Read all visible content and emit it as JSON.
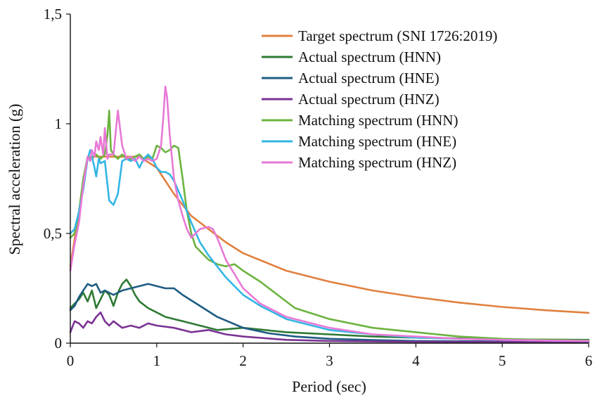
{
  "chart_data": {
    "type": "line",
    "xlabel": "Period (sec)",
    "ylabel": "Spectral acceleration (g)",
    "xlim": [
      0,
      6
    ],
    "ylim": [
      0,
      1.5
    ],
    "xticks": [
      0,
      1,
      2,
      3,
      4,
      5,
      6
    ],
    "xtick_labels": [
      "0",
      "1",
      "2",
      "3",
      "4",
      "5",
      "6"
    ],
    "yticks": [
      0,
      0.5,
      1,
      1.5
    ],
    "ytick_labels": [
      "0",
      "0,5",
      "1",
      "1,5"
    ],
    "grid": false,
    "legend_position": "top-right",
    "series": [
      {
        "name": "Target spectrum (SNI 1726:2019)",
        "color": "#E0803F",
        "x": [
          0,
          0.1,
          0.2,
          0.5,
          0.8,
          1.0,
          1.2,
          1.4,
          1.6,
          1.8,
          2.0,
          2.5,
          3.0,
          3.5,
          4.0,
          4.5,
          5.0,
          5.5,
          6.0
        ],
        "y": [
          0.35,
          0.6,
          0.85,
          0.85,
          0.85,
          0.8,
          0.68,
          0.58,
          0.52,
          0.46,
          0.41,
          0.33,
          0.28,
          0.24,
          0.21,
          0.185,
          0.165,
          0.15,
          0.138
        ]
      },
      {
        "name": "Actual spectrum (HNN)",
        "color": "#2E7A33",
        "x": [
          0,
          0.05,
          0.1,
          0.15,
          0.2,
          0.25,
          0.3,
          0.35,
          0.4,
          0.45,
          0.5,
          0.55,
          0.6,
          0.65,
          0.7,
          0.75,
          0.8,
          0.9,
          1.0,
          1.1,
          1.2,
          1.3,
          1.5,
          1.7,
          2.0,
          2.5,
          3.0,
          3.5,
          4.0,
          5.0,
          6.0
        ],
        "y": [
          0.16,
          0.18,
          0.2,
          0.23,
          0.19,
          0.24,
          0.16,
          0.2,
          0.24,
          0.22,
          0.17,
          0.23,
          0.27,
          0.29,
          0.26,
          0.22,
          0.19,
          0.16,
          0.14,
          0.12,
          0.11,
          0.1,
          0.08,
          0.06,
          0.07,
          0.05,
          0.04,
          0.03,
          0.025,
          0.018,
          0.015
        ]
      },
      {
        "name": "Actual spectrum (HNE)",
        "color": "#1E5C82",
        "x": [
          0,
          0.05,
          0.1,
          0.15,
          0.2,
          0.25,
          0.3,
          0.35,
          0.4,
          0.5,
          0.6,
          0.7,
          0.8,
          0.9,
          1.0,
          1.1,
          1.2,
          1.3,
          1.5,
          1.7,
          2.0,
          2.3,
          2.6,
          3.0,
          3.5,
          4.0,
          5.0,
          6.0
        ],
        "y": [
          0.15,
          0.17,
          0.21,
          0.24,
          0.27,
          0.26,
          0.27,
          0.23,
          0.24,
          0.22,
          0.24,
          0.25,
          0.26,
          0.27,
          0.26,
          0.25,
          0.25,
          0.22,
          0.17,
          0.12,
          0.07,
          0.045,
          0.03,
          0.02,
          0.014,
          0.01,
          0.008,
          0.007
        ]
      },
      {
        "name": "Actual spectrum (HNZ)",
        "color": "#7B3294",
        "x": [
          0,
          0.05,
          0.1,
          0.15,
          0.2,
          0.25,
          0.3,
          0.35,
          0.4,
          0.45,
          0.5,
          0.6,
          0.7,
          0.8,
          0.9,
          1.0,
          1.2,
          1.4,
          1.6,
          1.8,
          2.0,
          2.5,
          3.0,
          4.0,
          5.0,
          6.0
        ],
        "y": [
          0.05,
          0.1,
          0.09,
          0.07,
          0.1,
          0.09,
          0.12,
          0.14,
          0.1,
          0.08,
          0.1,
          0.07,
          0.08,
          0.07,
          0.09,
          0.08,
          0.07,
          0.05,
          0.06,
          0.04,
          0.03,
          0.015,
          0.01,
          0.006,
          0.005,
          0.005
        ]
      },
      {
        "name": "Matching spectrum (HNN)",
        "color": "#6CB33F",
        "x": [
          0,
          0.05,
          0.1,
          0.15,
          0.2,
          0.25,
          0.3,
          0.35,
          0.4,
          0.43,
          0.45,
          0.47,
          0.5,
          0.55,
          0.6,
          0.65,
          0.7,
          0.75,
          0.8,
          0.85,
          0.9,
          0.95,
          1.0,
          1.05,
          1.1,
          1.15,
          1.2,
          1.25,
          1.3,
          1.35,
          1.4,
          1.45,
          1.5,
          1.6,
          1.7,
          1.8,
          1.9,
          2.0,
          2.2,
          2.4,
          2.6,
          3.0,
          3.5,
          4.0,
          4.5,
          5.0,
          5.5,
          6.0
        ],
        "y": [
          0.48,
          0.5,
          0.6,
          0.75,
          0.85,
          0.84,
          0.86,
          0.84,
          0.86,
          0.95,
          1.06,
          0.88,
          0.86,
          0.84,
          0.86,
          0.84,
          0.84,
          0.85,
          0.86,
          0.84,
          0.85,
          0.84,
          0.9,
          0.89,
          0.87,
          0.88,
          0.9,
          0.89,
          0.75,
          0.6,
          0.5,
          0.44,
          0.42,
          0.38,
          0.36,
          0.35,
          0.36,
          0.33,
          0.28,
          0.22,
          0.16,
          0.11,
          0.07,
          0.05,
          0.03,
          0.02,
          0.015,
          0.012
        ]
      },
      {
        "name": "Matching spectrum (HNE)",
        "color": "#33B5E5",
        "x": [
          0,
          0.05,
          0.1,
          0.15,
          0.2,
          0.23,
          0.25,
          0.28,
          0.3,
          0.33,
          0.35,
          0.4,
          0.45,
          0.5,
          0.55,
          0.6,
          0.65,
          0.7,
          0.75,
          0.8,
          0.85,
          0.9,
          0.95,
          1.0,
          1.05,
          1.1,
          1.15,
          1.2,
          1.3,
          1.4,
          1.5,
          1.6,
          1.7,
          1.8,
          2.0,
          2.2,
          2.5,
          3.0,
          3.5,
          4.0,
          4.5,
          5.0,
          5.5,
          6.0
        ],
        "y": [
          0.5,
          0.52,
          0.6,
          0.7,
          0.84,
          0.88,
          0.85,
          0.8,
          0.76,
          0.84,
          0.82,
          0.83,
          0.65,
          0.63,
          0.68,
          0.83,
          0.84,
          0.83,
          0.84,
          0.8,
          0.84,
          0.86,
          0.84,
          0.8,
          0.78,
          0.78,
          0.77,
          0.74,
          0.65,
          0.55,
          0.46,
          0.4,
          0.35,
          0.3,
          0.22,
          0.17,
          0.11,
          0.06,
          0.04,
          0.025,
          0.02,
          0.015,
          0.012,
          0.01
        ]
      },
      {
        "name": "Matching spectrum (HNZ)",
        "color": "#E879D6",
        "x": [
          0,
          0.05,
          0.1,
          0.15,
          0.2,
          0.23,
          0.25,
          0.28,
          0.3,
          0.33,
          0.35,
          0.38,
          0.4,
          0.43,
          0.45,
          0.5,
          0.55,
          0.6,
          0.65,
          0.7,
          0.75,
          0.8,
          0.85,
          0.9,
          0.95,
          1.0,
          1.05,
          1.08,
          1.1,
          1.12,
          1.15,
          1.2,
          1.25,
          1.3,
          1.35,
          1.4,
          1.45,
          1.5,
          1.6,
          1.65,
          1.7,
          1.8,
          2.0,
          2.2,
          2.5,
          3.0,
          3.5,
          4.0,
          4.5,
          5.0,
          5.5,
          6.0
        ],
        "y": [
          0.33,
          0.45,
          0.55,
          0.72,
          0.85,
          0.83,
          0.88,
          0.85,
          0.92,
          0.88,
          0.94,
          0.86,
          0.98,
          0.84,
          0.86,
          0.86,
          1.06,
          0.9,
          0.84,
          0.85,
          0.83,
          0.85,
          0.83,
          0.84,
          0.83,
          0.84,
          0.9,
          1.05,
          1.17,
          1.12,
          0.95,
          0.75,
          0.65,
          0.58,
          0.52,
          0.48,
          0.5,
          0.52,
          0.53,
          0.52,
          0.48,
          0.38,
          0.25,
          0.18,
          0.12,
          0.07,
          0.04,
          0.03,
          0.02,
          0.015,
          0.012,
          0.01
        ]
      }
    ]
  }
}
